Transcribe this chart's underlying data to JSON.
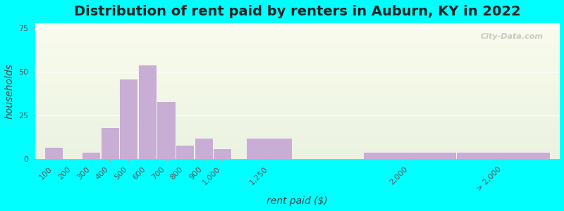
{
  "title": "Distribution of rent paid by renters in Auburn, KY in 2022",
  "xlabel": "rent paid ($)",
  "ylabel": "households",
  "bar_color": "#c8aed4",
  "bar_edgecolor": "#ffffff",
  "background_outer": "#00ffff",
  "yticks": [
    0,
    25,
    50,
    75
  ],
  "ylim": [
    0,
    78
  ],
  "categories": [
    "100",
    "200",
    "300",
    "400",
    "500",
    "600",
    "700",
    "800",
    "900",
    "1,000",
    "1,250",
    "2,000",
    "> 2,000"
  ],
  "values": [
    7,
    0,
    4,
    18,
    46,
    54,
    33,
    8,
    12,
    6,
    12,
    4,
    4
  ],
  "bar_positions": [
    100,
    200,
    300,
    400,
    500,
    600,
    700,
    800,
    900,
    1000,
    1250,
    2000,
    2500
  ],
  "bar_widths": [
    100,
    100,
    100,
    100,
    100,
    100,
    100,
    100,
    100,
    100,
    250,
    500,
    500
  ],
  "xlim": [
    0,
    2800
  ],
  "title_fontsize": 14,
  "axis_label_fontsize": 10,
  "tick_fontsize": 8,
  "watermark_text": "City-Data.com",
  "grid_color": "#ffffff",
  "grid_linewidth": 1.0
}
